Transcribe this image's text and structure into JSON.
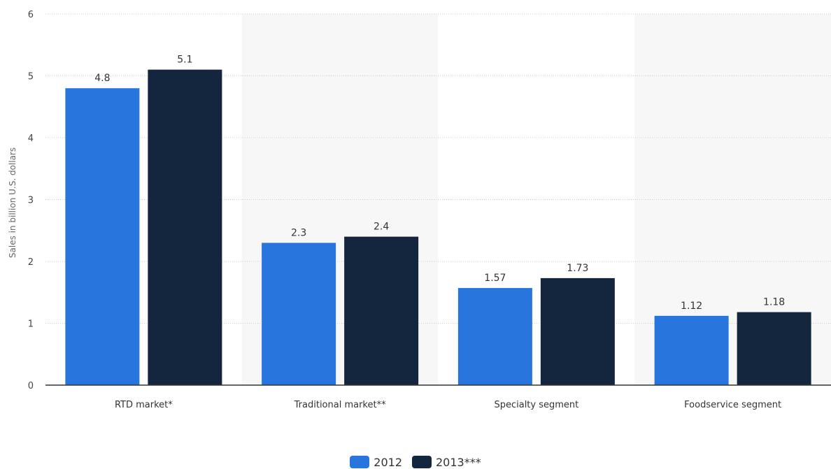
{
  "chart_data": {
    "type": "bar",
    "categories": [
      "RTD market*",
      "Traditional market**",
      "Specialty segment",
      "Foodservice segment"
    ],
    "series": [
      {
        "name": "2012",
        "values": [
          4.8,
          2.3,
          1.57,
          1.12
        ],
        "labels": [
          "4.8",
          "2.3",
          "1.57",
          "1.12"
        ],
        "color": "#2876dd"
      },
      {
        "name": "2013***",
        "values": [
          5.1,
          2.4,
          1.73,
          1.18
        ],
        "labels": [
          "5.1",
          "2.4",
          "1.73",
          "1.18"
        ],
        "color": "#13263e"
      }
    ],
    "ylabel": "Sales in billion U.S. dollars",
    "ylim": [
      0,
      6
    ],
    "yticks": [
      "0",
      "1",
      "2",
      "3",
      "4",
      "5",
      "6"
    ],
    "grid": true,
    "legend": "bottom-center",
    "band_color": "#f7f7f7",
    "grid_color": "#cccccc",
    "axis_color": "#333333"
  }
}
